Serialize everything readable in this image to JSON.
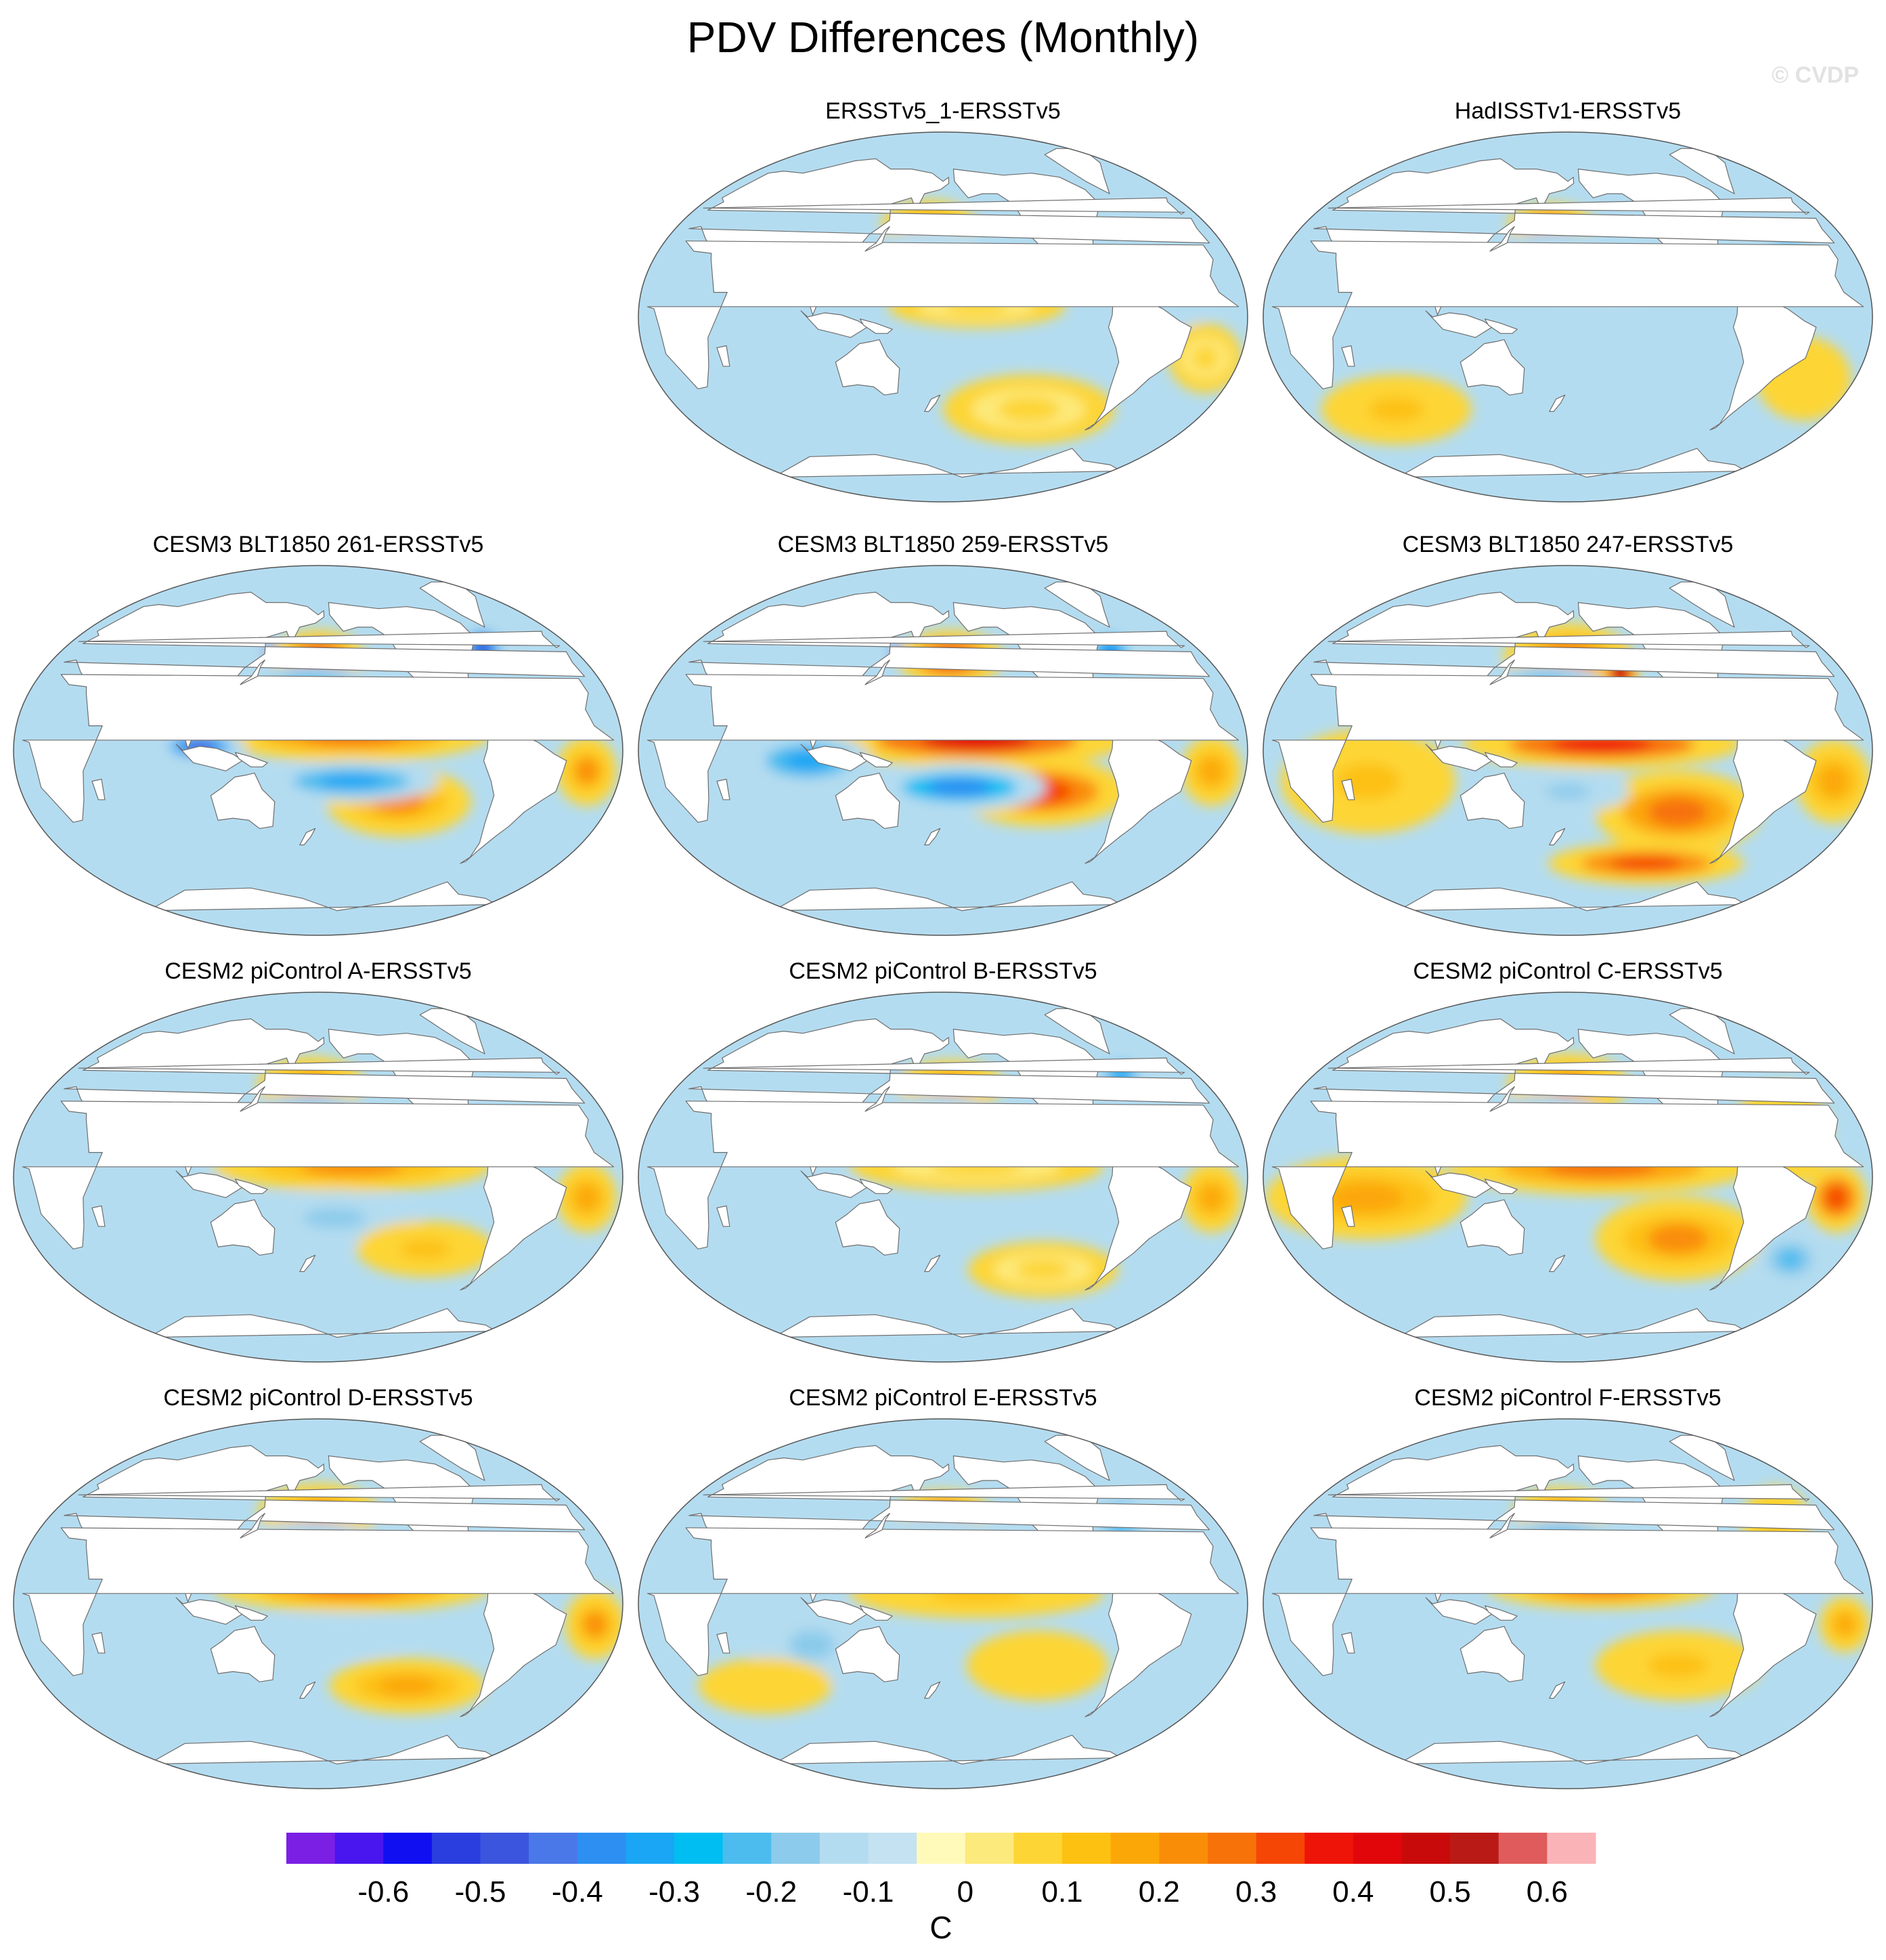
{
  "title": "PDV Differences (Monthly)",
  "watermark": "© CVDP",
  "chart_data": {
    "type": "heatmap",
    "projection": "Robinson (Pacific-centered)",
    "variable": "PDV pattern difference, sea surface temperature",
    "units": "C",
    "panels": [
      {
        "id": "p1",
        "title": "ERSSTv5_1-ERSSTv5",
        "anomalies": [
          {
            "lon": 170,
            "lat": 45,
            "rx": 22,
            "ry": 7,
            "value": 0.2
          },
          {
            "lon": 175,
            "lat": 33,
            "rx": 28,
            "ry": 6,
            "value": -0.1
          },
          {
            "lon": 200,
            "lat": 5,
            "rx": 35,
            "ry": 6,
            "value": 0.08
          },
          {
            "lon": 80,
            "lat": -25,
            "rx": 30,
            "ry": 10,
            "value": -0.12
          },
          {
            "lon": 240,
            "lat": -45,
            "rx": 40,
            "ry": 10,
            "value": 0.08
          },
          {
            "lon": 320,
            "lat": 20,
            "rx": 20,
            "ry": 15,
            "value": -0.12
          },
          {
            "lon": 340,
            "lat": -20,
            "rx": 15,
            "ry": 10,
            "value": 0.08
          }
        ]
      },
      {
        "id": "p2",
        "title": "HadISSTv1-ERSSTv5",
        "anomalies": [
          {
            "lon": 168,
            "lat": 45,
            "rx": 20,
            "ry": 6,
            "value": 0.32
          },
          {
            "lon": 175,
            "lat": 32,
            "rx": 28,
            "ry": 6,
            "value": -0.12
          },
          {
            "lon": 200,
            "lat": 15,
            "rx": 40,
            "ry": 8,
            "value": -0.1
          },
          {
            "lon": 60,
            "lat": -45,
            "rx": 35,
            "ry": 10,
            "value": 0.15
          },
          {
            "lon": 230,
            "lat": -20,
            "rx": 30,
            "ry": 12,
            "value": -0.12
          },
          {
            "lon": 320,
            "lat": 30,
            "rx": 20,
            "ry": 20,
            "value": -0.15
          },
          {
            "lon": 330,
            "lat": -30,
            "rx": 20,
            "ry": 12,
            "value": 0.12
          }
        ]
      },
      {
        "id": "p3",
        "title": "CESM3 BLT1850 261-ERSSTv5",
        "anomalies": [
          {
            "lon": 150,
            "lat": 48,
            "rx": 8,
            "ry": 4,
            "value": -0.62
          },
          {
            "lon": 180,
            "lat": 45,
            "rx": 22,
            "ry": 8,
            "value": 0.42
          },
          {
            "lon": 175,
            "lat": 32,
            "rx": 30,
            "ry": 6,
            "value": -0.25
          },
          {
            "lon": 200,
            "lat": 8,
            "rx": 55,
            "ry": 8,
            "value": 0.32
          },
          {
            "lon": 230,
            "lat": -25,
            "rx": 30,
            "ry": 10,
            "value": 0.25
          },
          {
            "lon": 200,
            "lat": -15,
            "rx": 35,
            "ry": 6,
            "value": -0.3
          },
          {
            "lon": 110,
            "lat": 2,
            "rx": 18,
            "ry": 5,
            "value": -0.45
          },
          {
            "lon": 300,
            "lat": 50,
            "rx": 12,
            "ry": 8,
            "value": -0.45
          },
          {
            "lon": 340,
            "lat": -10,
            "rx": 12,
            "ry": 10,
            "value": 0.25
          }
        ]
      },
      {
        "id": "p4",
        "title": "CESM3 BLT1850 259-ERSSTv5",
        "anomalies": [
          {
            "lon": 150,
            "lat": 48,
            "rx": 8,
            "ry": 4,
            "value": -0.6
          },
          {
            "lon": 185,
            "lat": 45,
            "rx": 25,
            "ry": 8,
            "value": 0.42
          },
          {
            "lon": 200,
            "lat": 5,
            "rx": 60,
            "ry": 8,
            "value": 0.45
          },
          {
            "lon": 240,
            "lat": -20,
            "rx": 35,
            "ry": 10,
            "value": 0.35
          },
          {
            "lon": 190,
            "lat": -18,
            "rx": 35,
            "ry": 7,
            "value": -0.35
          },
          {
            "lon": 100,
            "lat": -5,
            "rx": 25,
            "ry": 8,
            "value": -0.3
          },
          {
            "lon": 300,
            "lat": 48,
            "rx": 12,
            "ry": 8,
            "value": -0.35
          },
          {
            "lon": 340,
            "lat": -10,
            "rx": 12,
            "ry": 10,
            "value": 0.22
          }
        ]
      },
      {
        "id": "p5",
        "title": "CESM3 BLT1850 247-ERSSTv5",
        "anomalies": [
          {
            "lon": 180,
            "lat": 45,
            "rx": 30,
            "ry": 10,
            "value": 0.3
          },
          {
            "lon": 215,
            "lat": 38,
            "rx": 8,
            "ry": 8,
            "value": 0.55
          },
          {
            "lon": 165,
            "lat": 32,
            "rx": 25,
            "ry": 6,
            "value": -0.2
          },
          {
            "lon": 200,
            "lat": 3,
            "rx": 55,
            "ry": 7,
            "value": 0.4
          },
          {
            "lon": 250,
            "lat": -30,
            "rx": 35,
            "ry": 12,
            "value": 0.3
          },
          {
            "lon": 240,
            "lat": -55,
            "rx": 50,
            "ry": 6,
            "value": 0.35
          },
          {
            "lon": 180,
            "lat": -20,
            "rx": 25,
            "ry": 6,
            "value": -0.15
          },
          {
            "lon": 60,
            "lat": -15,
            "rx": 35,
            "ry": 15,
            "value": 0.15
          },
          {
            "lon": 340,
            "lat": -15,
            "rx": 15,
            "ry": 12,
            "value": 0.2
          }
        ]
      },
      {
        "id": "p6",
        "title": "CESM2 piControl A-ERSSTv5",
        "anomalies": [
          {
            "lon": 150,
            "lat": 50,
            "rx": 6,
            "ry": 3,
            "value": -0.55
          },
          {
            "lon": 175,
            "lat": 45,
            "rx": 25,
            "ry": 8,
            "value": 0.25
          },
          {
            "lon": 175,
            "lat": 30,
            "rx": 30,
            "ry": 6,
            "value": -0.2
          },
          {
            "lon": 200,
            "lat": 5,
            "rx": 55,
            "ry": 7,
            "value": 0.25
          },
          {
            "lon": 190,
            "lat": -20,
            "rx": 35,
            "ry": 8,
            "value": -0.15
          },
          {
            "lon": 250,
            "lat": -35,
            "rx": 30,
            "ry": 8,
            "value": 0.15
          },
          {
            "lon": 90,
            "lat": -15,
            "rx": 30,
            "ry": 12,
            "value": -0.12
          },
          {
            "lon": 340,
            "lat": -10,
            "rx": 12,
            "ry": 10,
            "value": 0.22
          }
        ]
      },
      {
        "id": "p7",
        "title": "CESM2 piControl B-ERSSTv5",
        "anomalies": [
          {
            "lon": 150,
            "lat": 48,
            "rx": 6,
            "ry": 3,
            "value": -0.4
          },
          {
            "lon": 185,
            "lat": 45,
            "rx": 25,
            "ry": 7,
            "value": 0.25
          },
          {
            "lon": 175,
            "lat": 30,
            "rx": 25,
            "ry": 6,
            "value": -0.12
          },
          {
            "lon": 200,
            "lat": 5,
            "rx": 50,
            "ry": 7,
            "value": 0.1
          },
          {
            "lon": 100,
            "lat": -20,
            "rx": 30,
            "ry": 12,
            "value": -0.12
          },
          {
            "lon": 250,
            "lat": -45,
            "rx": 35,
            "ry": 8,
            "value": 0.1
          },
          {
            "lon": 310,
            "lat": 50,
            "rx": 12,
            "ry": 6,
            "value": -0.3
          },
          {
            "lon": 340,
            "lat": -10,
            "rx": 12,
            "ry": 10,
            "value": 0.2
          }
        ]
      },
      {
        "id": "p8",
        "title": "CESM2 piControl C-ERSSTv5",
        "anomalies": [
          {
            "lon": 180,
            "lat": 45,
            "rx": 28,
            "ry": 9,
            "value": 0.25
          },
          {
            "lon": 165,
            "lat": 30,
            "rx": 25,
            "ry": 6,
            "value": -0.15
          },
          {
            "lon": 200,
            "lat": 5,
            "rx": 60,
            "ry": 8,
            "value": 0.3
          },
          {
            "lon": 250,
            "lat": -30,
            "rx": 35,
            "ry": 12,
            "value": 0.25
          },
          {
            "lon": 60,
            "lat": -10,
            "rx": 40,
            "ry": 12,
            "value": 0.18
          },
          {
            "lon": 310,
            "lat": 20,
            "rx": 20,
            "ry": 15,
            "value": 0.15
          },
          {
            "lon": 340,
            "lat": -10,
            "rx": 12,
            "ry": 10,
            "value": 0.35
          },
          {
            "lon": 330,
            "lat": -40,
            "rx": 15,
            "ry": 8,
            "value": -0.2
          }
        ]
      },
      {
        "id": "p9",
        "title": "CESM2 piControl D-ERSSTv5",
        "anomalies": [
          {
            "lon": 180,
            "lat": 45,
            "rx": 28,
            "ry": 8,
            "value": 0.25
          },
          {
            "lon": 175,
            "lat": 30,
            "rx": 28,
            "ry": 6,
            "value": -0.15
          },
          {
            "lon": 200,
            "lat": 8,
            "rx": 55,
            "ry": 7,
            "value": 0.28
          },
          {
            "lon": 190,
            "lat": -15,
            "rx": 30,
            "ry": 6,
            "value": -0.12
          },
          {
            "lon": 240,
            "lat": -40,
            "rx": 35,
            "ry": 8,
            "value": 0.18
          },
          {
            "lon": 80,
            "lat": -20,
            "rx": 30,
            "ry": 12,
            "value": -0.12
          },
          {
            "lon": 345,
            "lat": -10,
            "rx": 12,
            "ry": 10,
            "value": 0.25
          }
        ]
      },
      {
        "id": "p10",
        "title": "CESM2 piControl E-ERSSTv5",
        "anomalies": [
          {
            "lon": 180,
            "lat": 45,
            "rx": 22,
            "ry": 6,
            "value": 0.3
          },
          {
            "lon": 175,
            "lat": 33,
            "rx": 28,
            "ry": 6,
            "value": -0.12
          },
          {
            "lon": 200,
            "lat": 5,
            "rx": 50,
            "ry": 7,
            "value": 0.15
          },
          {
            "lon": 100,
            "lat": -20,
            "rx": 25,
            "ry": 12,
            "value": -0.15
          },
          {
            "lon": 240,
            "lat": -30,
            "rx": 30,
            "ry": 10,
            "value": 0.12
          },
          {
            "lon": 300,
            "lat": 40,
            "rx": 15,
            "ry": 10,
            "value": -0.2
          },
          {
            "lon": 60,
            "lat": -40,
            "rx": 30,
            "ry": 8,
            "value": 0.12
          }
        ]
      },
      {
        "id": "p11",
        "title": "CESM2 piControl F-ERSSTv5",
        "anomalies": [
          {
            "lon": 175,
            "lat": 45,
            "rx": 22,
            "ry": 7,
            "value": 0.25
          },
          {
            "lon": 175,
            "lat": 32,
            "rx": 28,
            "ry": 6,
            "value": -0.2
          },
          {
            "lon": 200,
            "lat": 8,
            "rx": 45,
            "ry": 6,
            "value": 0.3
          },
          {
            "lon": 250,
            "lat": -30,
            "rx": 35,
            "ry": 10,
            "value": 0.15
          },
          {
            "lon": 80,
            "lat": -20,
            "rx": 30,
            "ry": 12,
            "value": -0.12
          },
          {
            "lon": 320,
            "lat": 40,
            "rx": 15,
            "ry": 10,
            "value": 0.15
          },
          {
            "lon": 345,
            "lat": -10,
            "rx": 10,
            "ry": 8,
            "value": 0.2
          }
        ]
      }
    ],
    "colorbar": {
      "label": "C",
      "levels": [
        -0.65,
        -0.6,
        -0.55,
        -0.5,
        -0.45,
        -0.4,
        -0.35,
        -0.3,
        -0.25,
        -0.2,
        -0.15,
        -0.1,
        -0.05,
        0,
        0.05,
        0.1,
        0.15,
        0.2,
        0.25,
        0.3,
        0.35,
        0.4,
        0.45,
        0.5,
        0.55,
        0.6,
        0.65
      ],
      "tick_labels": [
        "-0.6",
        "-0.5",
        "-0.4",
        "-0.3",
        "-0.2",
        "-0.1",
        "0",
        "0.1",
        "0.2",
        "0.3",
        "0.4",
        "0.5",
        "0.6"
      ],
      "colors": [
        "#7b1fe5",
        "#4a16f0",
        "#0f0ff2",
        "#2a3ee0",
        "#3c55de",
        "#4a78e8",
        "#2d8ff2",
        "#1aa6f4",
        "#00bef2",
        "#4cbcef",
        "#8ccbeb",
        "#b4dcf0",
        "#c4e2f2",
        "#fffab9",
        "#fdea7c",
        "#fdd535",
        "#fdc112",
        "#fca708",
        "#fa8d08",
        "#f77208",
        "#f54606",
        "#ef1408",
        "#e1060a",
        "#c90a0a",
        "#ba1a16",
        "#e05b5b",
        "#fab4b8"
      ]
    }
  }
}
